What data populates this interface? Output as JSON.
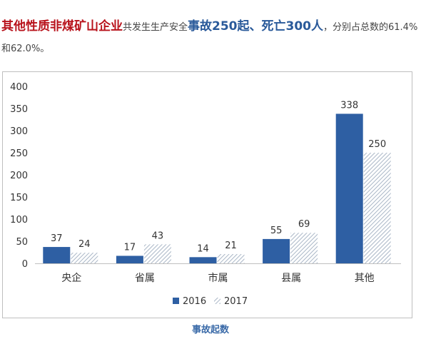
{
  "intro": {
    "part1": "其他性质非煤矿山企业",
    "part2": "共发生生产安全",
    "part3": "事故250起、死亡300人",
    "part4": "，分别占总数的61.4%和62.0%。"
  },
  "colors": {
    "series_2016": "#2e5fa3",
    "series_2017_hatch": "#a9b6c6",
    "intro_red": "#b8121b",
    "intro_blue": "#2a5a9a",
    "caption": "#3a6aa8"
  },
  "chart_data": {
    "type": "bar",
    "categories": [
      "央企",
      "省属",
      "市属",
      "县属",
      "其他"
    ],
    "series": [
      {
        "name": "2016",
        "values": [
          37,
          17,
          14,
          55,
          338
        ]
      },
      {
        "name": "2017",
        "values": [
          24,
          43,
          21,
          69,
          250
        ]
      }
    ],
    "ylim": [
      0,
      400
    ],
    "yticks": [
      0,
      50,
      100,
      150,
      200,
      250,
      300,
      350,
      400
    ],
    "grid": false,
    "legend_position": "bottom"
  },
  "caption": "事故起数"
}
